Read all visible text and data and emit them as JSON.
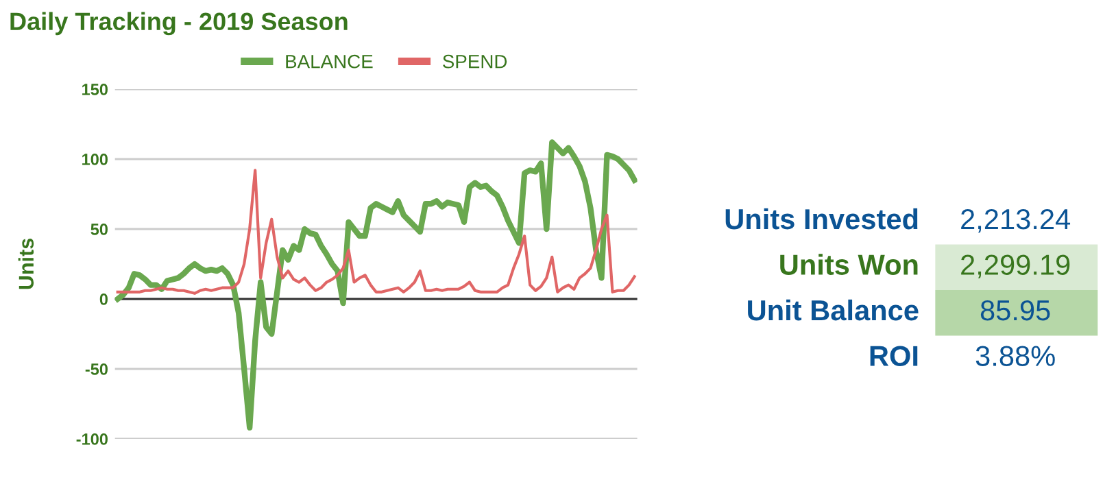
{
  "chart_data": [
    {
      "type": "line",
      "title": "Daily Tracking - 2019 Season",
      "ylabel": "Units",
      "categories": [
        null,
        null,
        null,
        null,
        null,
        null,
        null,
        null,
        null,
        null,
        null,
        null,
        null,
        null,
        null,
        null,
        null,
        null,
        null,
        null,
        null,
        null,
        null,
        null,
        null,
        null,
        null,
        null,
        null,
        null,
        null,
        null,
        null,
        null,
        null,
        null,
        null,
        null,
        null,
        null,
        null,
        null,
        null,
        null,
        null,
        null,
        null,
        null,
        null,
        null,
        null,
        null,
        null,
        null,
        null,
        null,
        null,
        null,
        null,
        null,
        null,
        null,
        null,
        null,
        null,
        null,
        null,
        null,
        null,
        null,
        null,
        null,
        null,
        null,
        null,
        null,
        null,
        null,
        null,
        null,
        null,
        null,
        null,
        null,
        null,
        null,
        null,
        null,
        null,
        null,
        null,
        null,
        null,
        null,
        null
      ],
      "series": [
        {
          "name": "BALANCE",
          "color": "#6aa84f",
          "values": [
            0,
            3,
            8,
            18,
            17,
            14,
            10,
            10,
            7,
            13,
            14,
            15,
            18,
            22,
            25,
            22,
            20,
            21,
            20,
            22,
            18,
            10,
            -10,
            -50,
            -92,
            -30,
            12,
            -20,
            -25,
            5,
            35,
            28,
            38,
            35,
            50,
            47,
            46,
            38,
            32,
            25,
            20,
            -3,
            55,
            50,
            45,
            45,
            65,
            68,
            66,
            64,
            62,
            70,
            60,
            56,
            52,
            48,
            68,
            68,
            70,
            66,
            69,
            68,
            67,
            55,
            80,
            83,
            80,
            81,
            77,
            74,
            66,
            56,
            48,
            40,
            90,
            92,
            91,
            97,
            50,
            112,
            108,
            104,
            108,
            102,
            95,
            84,
            65,
            35,
            15,
            103,
            102,
            100,
            96,
            92,
            85
          ]
        },
        {
          "name": "SPEND",
          "color": "#e06666",
          "values": [
            5,
            5,
            5,
            5,
            5,
            6,
            6,
            7,
            8,
            7,
            7,
            6,
            6,
            5,
            4,
            6,
            7,
            6,
            7,
            8,
            8,
            8,
            12,
            25,
            50,
            92,
            15,
            40,
            57,
            30,
            15,
            20,
            14,
            12,
            15,
            10,
            6,
            8,
            12,
            14,
            17,
            22,
            35,
            12,
            15,
            17,
            10,
            5,
            5,
            6,
            7,
            8,
            5,
            8,
            12,
            20,
            6,
            6,
            7,
            6,
            7,
            7,
            7,
            9,
            12,
            6,
            5,
            5,
            5,
            5,
            8,
            10,
            22,
            32,
            45,
            10,
            6,
            9,
            15,
            30,
            5,
            8,
            10,
            7,
            15,
            18,
            22,
            35,
            50,
            60,
            5,
            6,
            6,
            10,
            16
          ]
        }
      ],
      "ylim": [
        -100,
        150
      ],
      "yticks": [
        -100,
        -50,
        0,
        50,
        100,
        150
      ],
      "grid": "y",
      "legend": "top",
      "line_style": "solid",
      "marker": "none",
      "ref_lines": [
        {
          "axis": "y",
          "value": 0,
          "color": "#333333"
        }
      ]
    },
    {
      "type": "other",
      "categories": [
        "Units Invested",
        "Units Won",
        "Unit Balance",
        "ROI"
      ],
      "value_labels": [
        "2,213.24",
        "2,299.19",
        "85.95",
        "3.88%"
      ],
      "colors": [
        null,
        "#d9ead3",
        "#b6d7a8",
        null
      ]
    }
  ]
}
